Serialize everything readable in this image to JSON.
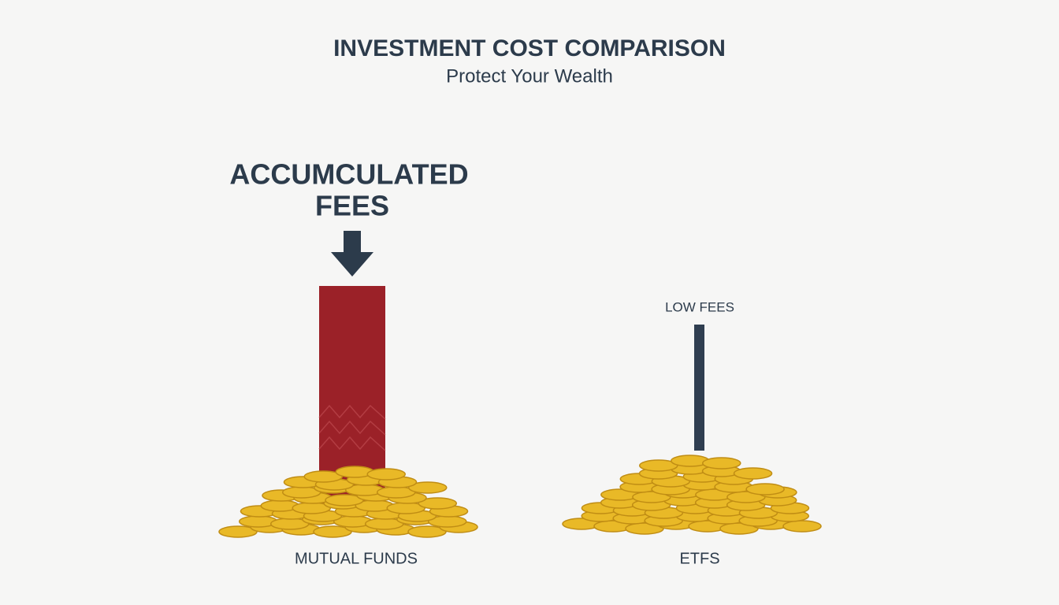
{
  "header": {
    "title": "INVESTMENT COST COMPARISON",
    "subtitle": "Protect Your Wealth"
  },
  "callout": {
    "lines": [
      "ACCUMCULATED",
      "FEES"
    ]
  },
  "columns": [
    {
      "label": "MUTUAL FUNDS"
    },
    {
      "label": "ETFS",
      "note": "LOW FEES"
    }
  ]
}
